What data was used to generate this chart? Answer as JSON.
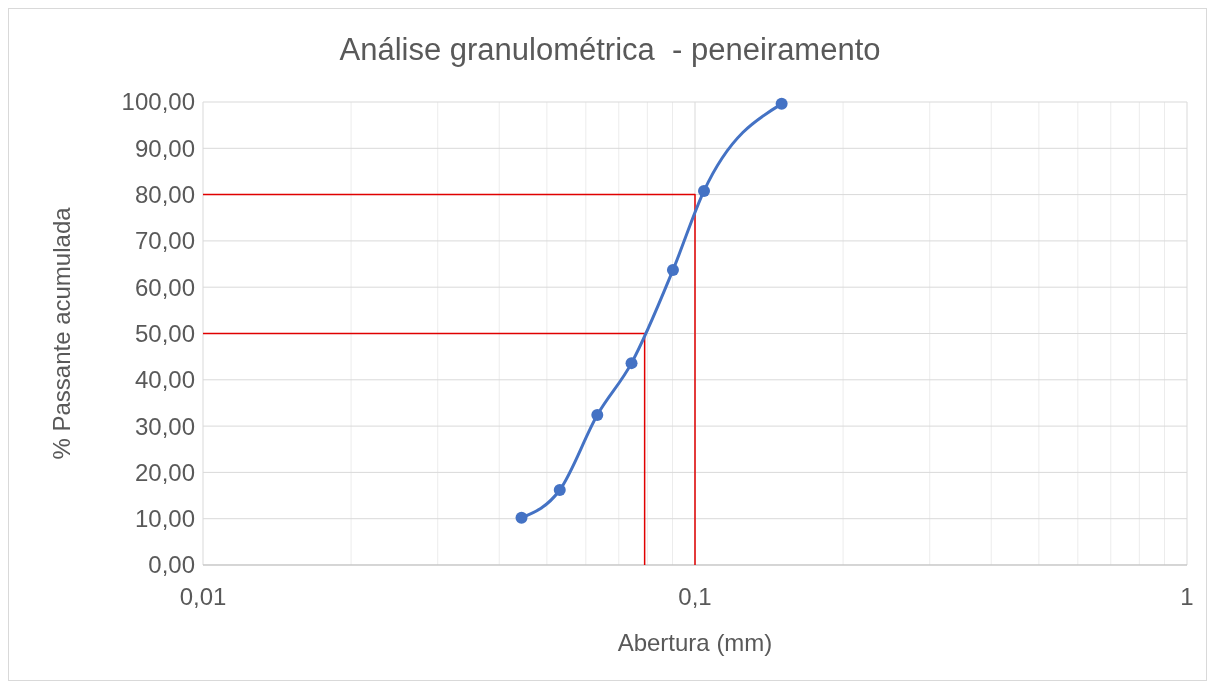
{
  "chart_data": {
    "type": "line",
    "title": "Análise granulométrica  - peneiramento",
    "xlabel": "Abertura (mm)",
    "ylabel": "% Passante acumulada",
    "log": "x",
    "grid": true,
    "marker": "circle",
    "xlim": [
      0.01,
      1
    ],
    "ylim": [
      0,
      100
    ],
    "xticks": [
      {
        "value": 0.01,
        "label": "0,01"
      },
      {
        "value": 0.02,
        "label": null
      },
      {
        "value": 0.03,
        "label": null
      },
      {
        "value": 0.04,
        "label": null
      },
      {
        "value": 0.05,
        "label": null
      },
      {
        "value": 0.06,
        "label": null
      },
      {
        "value": 0.07,
        "label": null
      },
      {
        "value": 0.08,
        "label": null
      },
      {
        "value": 0.09,
        "label": null
      },
      {
        "value": 0.1,
        "label": "0,1"
      },
      {
        "value": 0.2,
        "label": null
      },
      {
        "value": 0.3,
        "label": null
      },
      {
        "value": 0.4,
        "label": null
      },
      {
        "value": 0.5,
        "label": null
      },
      {
        "value": 0.6,
        "label": null
      },
      {
        "value": 0.7,
        "label": null
      },
      {
        "value": 0.8,
        "label": null
      },
      {
        "value": 0.9,
        "label": null
      },
      {
        "value": 1,
        "label": "1"
      }
    ],
    "yticks": [
      {
        "value": 0,
        "label": "0,00"
      },
      {
        "value": 10,
        "label": "10,00"
      },
      {
        "value": 20,
        "label": "20,00"
      },
      {
        "value": 30,
        "label": "30,00"
      },
      {
        "value": 40,
        "label": "40,00"
      },
      {
        "value": 50,
        "label": "50,00"
      },
      {
        "value": 60,
        "label": "60,00"
      },
      {
        "value": 70,
        "label": "70,00"
      },
      {
        "value": 80,
        "label": "80,00"
      },
      {
        "value": 90,
        "label": "90,00"
      },
      {
        "value": 100,
        "label": "100,00"
      }
    ],
    "series": [
      {
        "color": "#4472c4",
        "x": [
          0.0444,
          0.0531,
          0.0633,
          0.0743,
          0.0902,
          0.1043,
          0.15
        ],
        "values": [
          10.2,
          16.2,
          32.4,
          43.6,
          63.7,
          80.8,
          99.6
        ]
      },
      {
        "color": "#e00000",
        "marker": "none",
        "x": [
          0.01,
          0.1,
          0.1
        ],
        "values": [
          80,
          80,
          0
        ]
      },
      {
        "color": "#e00000",
        "marker": "none",
        "x": [
          0.01,
          0.079,
          0.079
        ],
        "values": [
          50,
          50,
          0
        ]
      }
    ]
  }
}
